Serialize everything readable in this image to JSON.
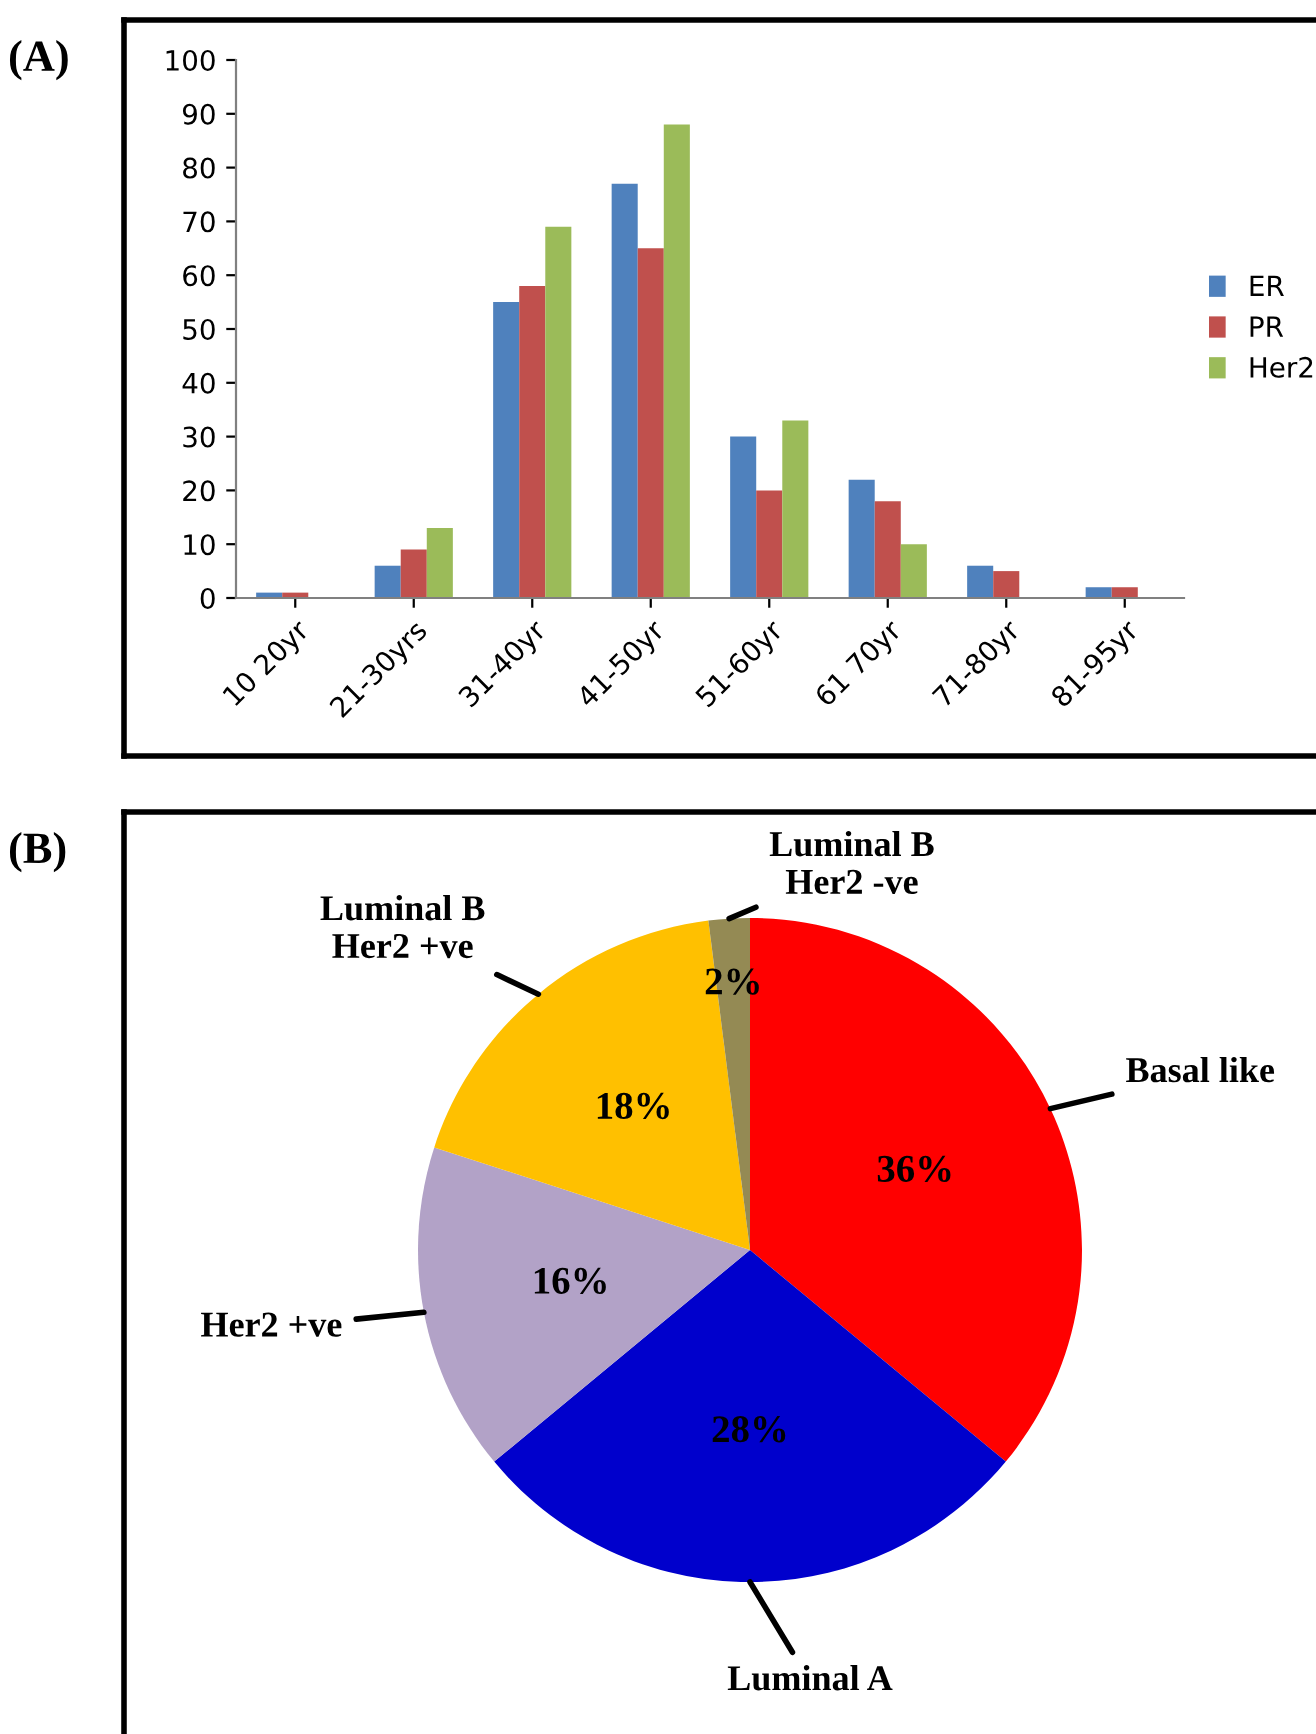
{
  "chart_data": [
    {
      "type": "bar",
      "title": "(A)",
      "categories": [
        "10 20yr",
        "21-30yrs",
        "31-40yr",
        "41-50yr",
        "51-60yr",
        "61 70yr",
        "71-80yr",
        "81-95yr"
      ],
      "series": [
        {
          "name": "ER",
          "color": "#4f81bd",
          "values": [
            1,
            6,
            55,
            77,
            30,
            22,
            6,
            2
          ]
        },
        {
          "name": "PR",
          "color": "#c0504d",
          "values": [
            1,
            9,
            58,
            65,
            20,
            18,
            5,
            2
          ]
        },
        {
          "name": "Her2",
          "color": "#9bbb59",
          "values": [
            0,
            13,
            69,
            88,
            33,
            10,
            0,
            0
          ]
        }
      ],
      "ylim": [
        0,
        100
      ],
      "yticks": [
        0,
        10,
        20,
        30,
        40,
        50,
        60,
        70,
        80,
        90,
        100
      ],
      "legend": "right",
      "grid": false
    },
    {
      "type": "pie",
      "title": "(B)",
      "categories": [
        "Basal like",
        "Luminal A",
        "Her2 +ve",
        "Luminal B\nHer2 +ve",
        "Luminal B\nHer2 -ve"
      ],
      "values": [
        36,
        28,
        16,
        18,
        2
      ],
      "colors": [
        "#ff0000",
        "#0000cc",
        "#b2a2c7",
        "#ffc000",
        "#948a54"
      ],
      "value_labels": [
        "36%",
        "28%",
        "16%",
        "18%",
        "2%"
      ]
    }
  ]
}
